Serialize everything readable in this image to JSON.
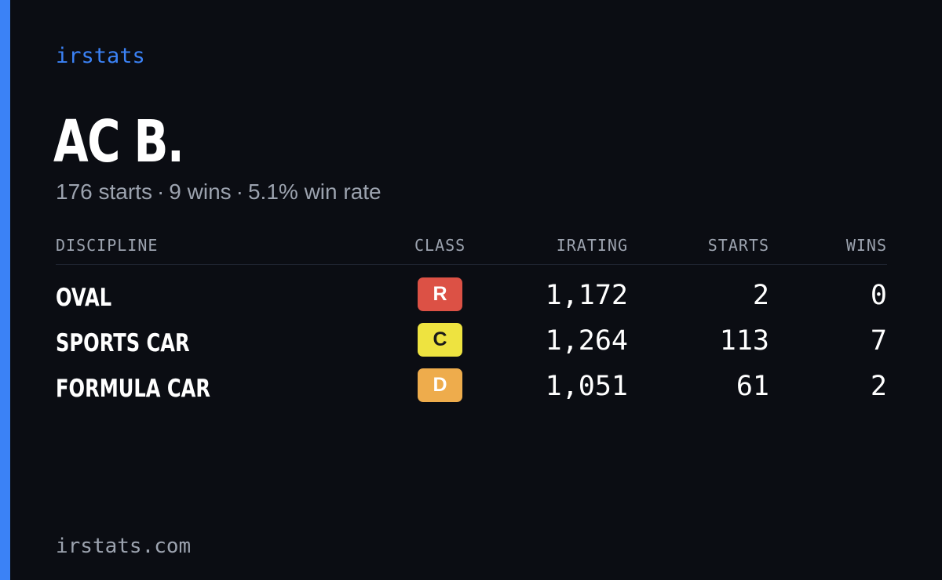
{
  "brand": "irstats",
  "driver": {
    "name": "AC B.",
    "starts": "176 starts",
    "wins": "9 wins",
    "win_rate": "5.1% win rate",
    "separator": "·"
  },
  "table": {
    "headers": {
      "discipline": "DISCIPLINE",
      "class": "CLASS",
      "irating": "IRATING",
      "starts": "STARTS",
      "wins": "WINS"
    },
    "rows": [
      {
        "discipline": "OVAL",
        "class": "R",
        "class_bg": "#dc5145",
        "class_fg": "#ffffff",
        "irating": "1,172",
        "starts": "2",
        "wins": "0"
      },
      {
        "discipline": "SPORTS CAR",
        "class": "C",
        "class_bg": "#eee340",
        "class_fg": "#1a1a1a",
        "irating": "1,264",
        "starts": "113",
        "wins": "7"
      },
      {
        "discipline": "FORMULA CAR",
        "class": "D",
        "class_bg": "#eeac4c",
        "class_fg": "#ffffff",
        "irating": "1,051",
        "starts": "61",
        "wins": "2"
      }
    ]
  },
  "footer": "irstats.com",
  "colors": {
    "background": "#0b0d13",
    "accent": "#3b82f6",
    "muted_text": "#9ca3af"
  }
}
